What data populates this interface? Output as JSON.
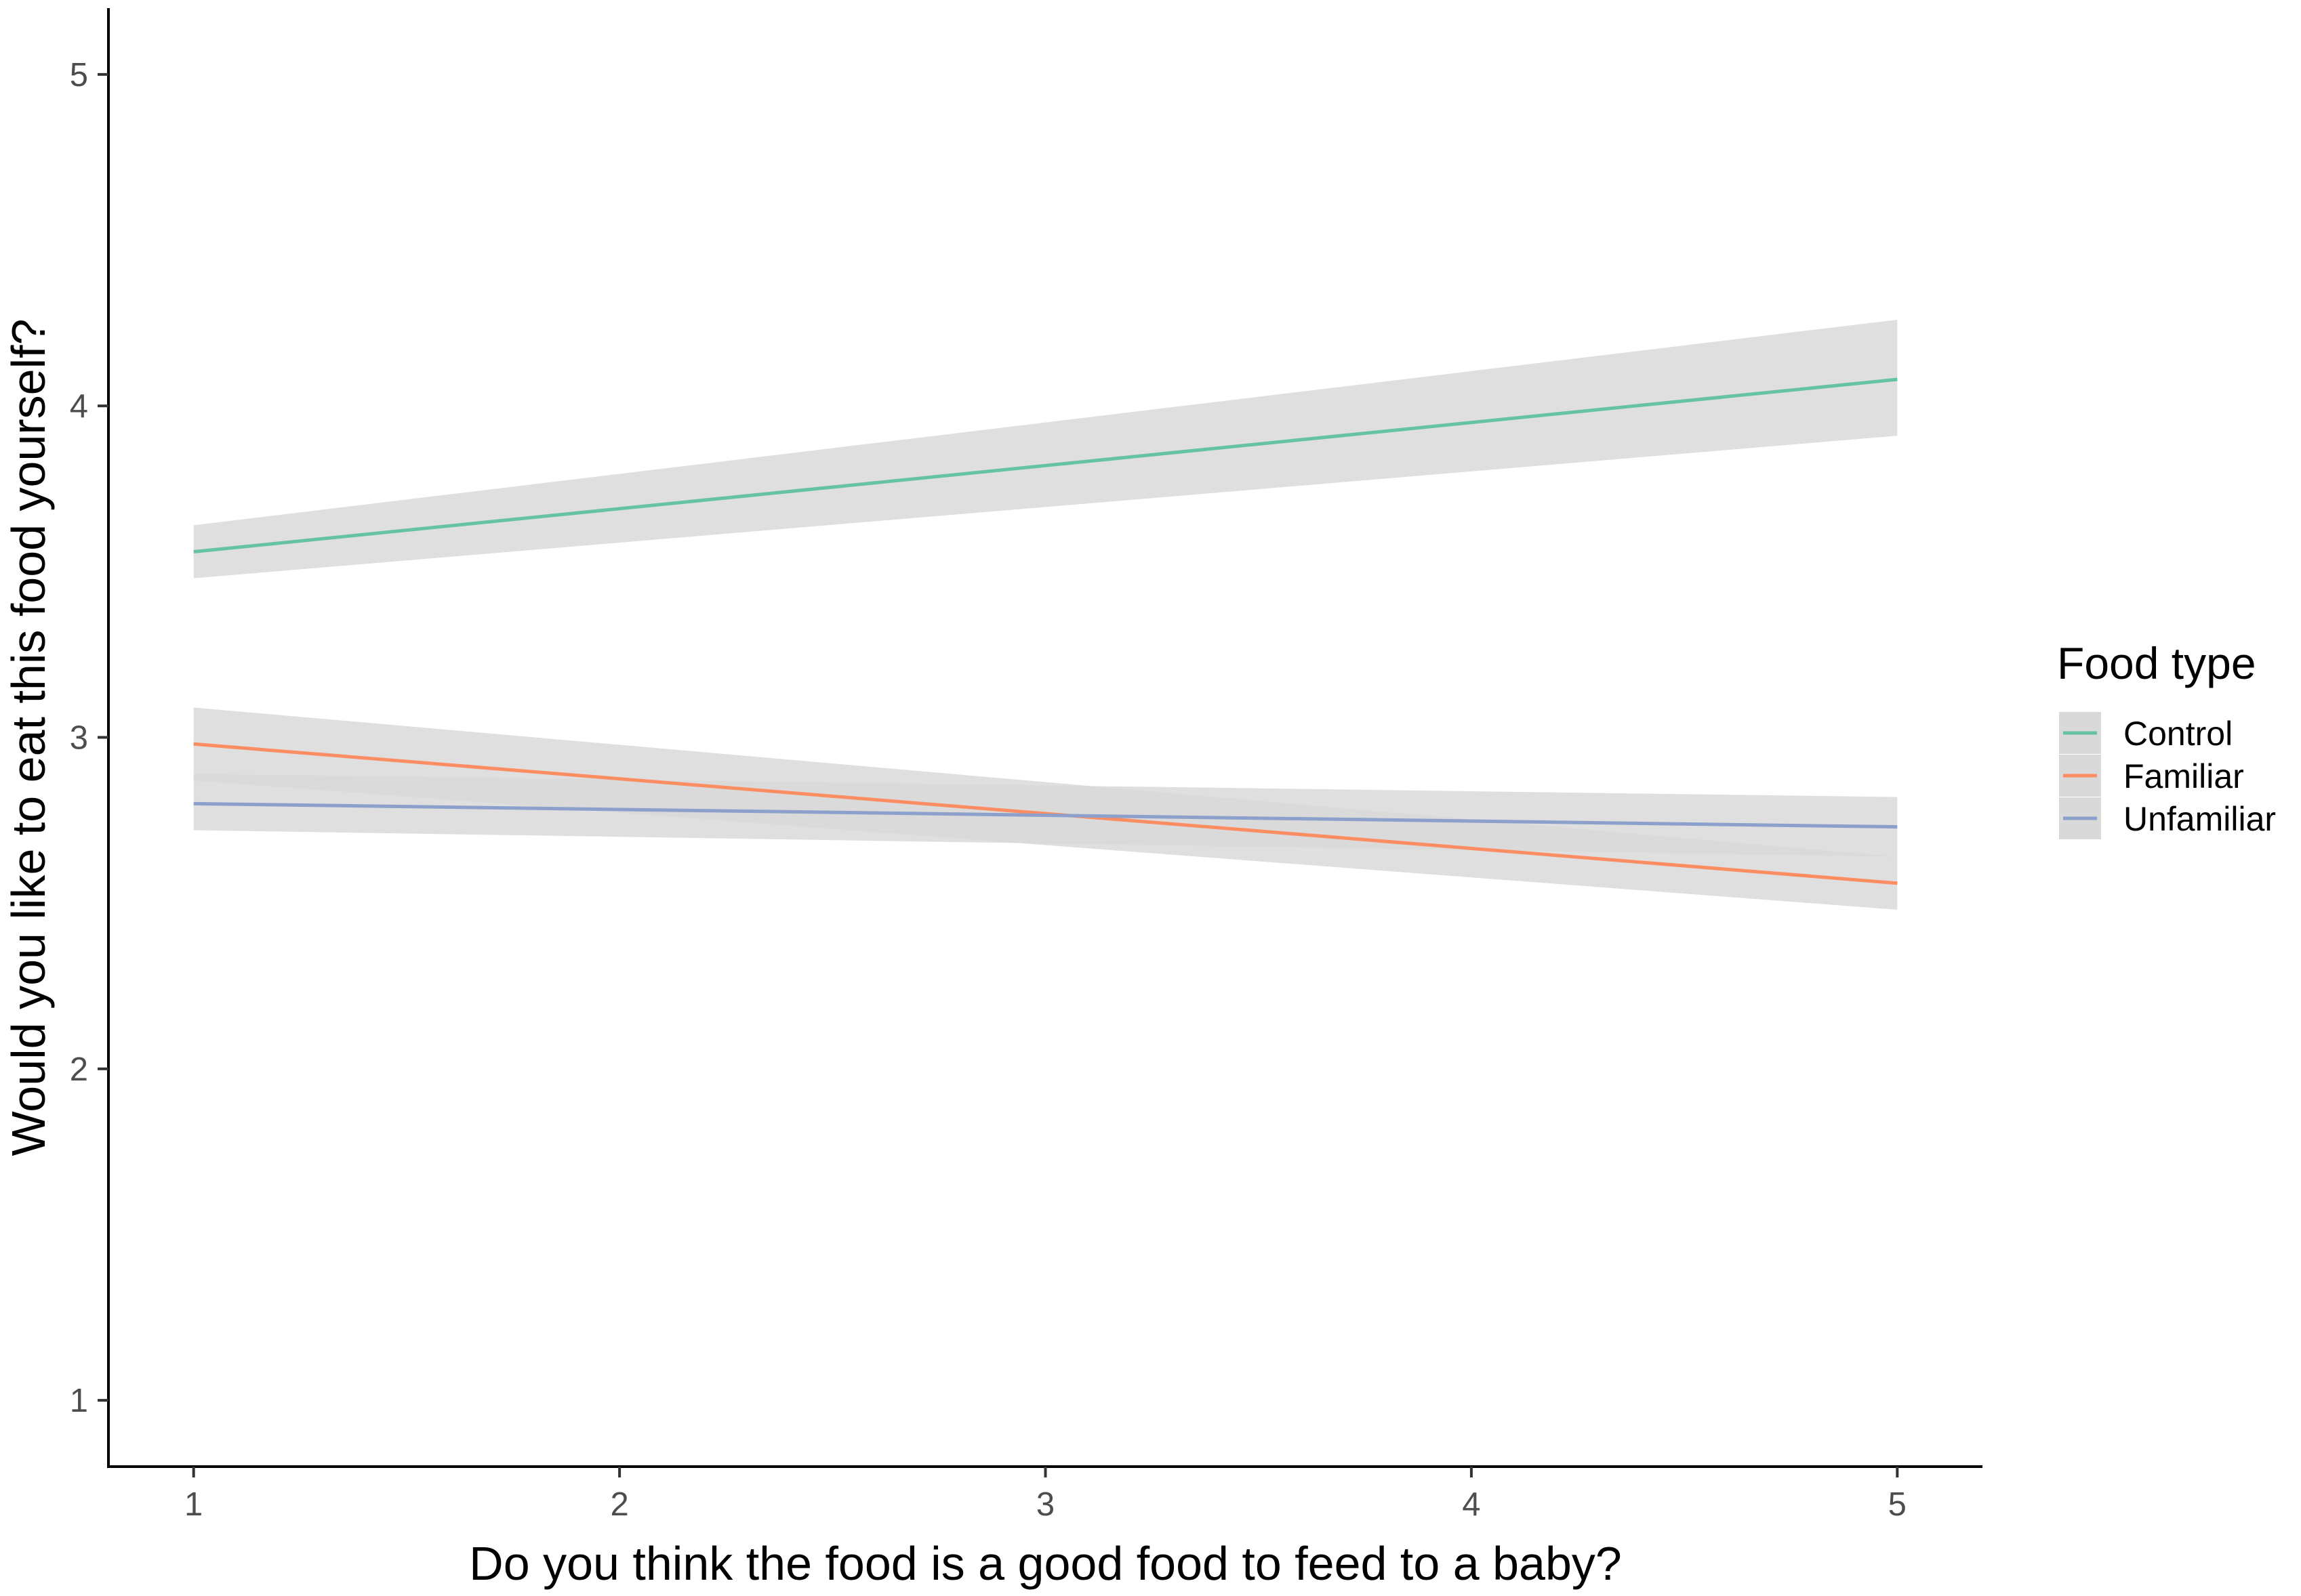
{
  "chart_data": {
    "type": "line",
    "title": "",
    "xlabel": "Do you think the food is a good food to feed to a baby?",
    "ylabel": "Would you like to eat this food yourself?",
    "xlim": [
      0.8,
      5.2
    ],
    "ylim": [
      0.8,
      5.2
    ],
    "x_ticks": [
      1,
      2,
      3,
      4,
      5
    ],
    "y_ticks": [
      1,
      2,
      3,
      4,
      5
    ],
    "x_tick_labels": [
      "1",
      "2",
      "3",
      "4",
      "5"
    ],
    "y_tick_labels": [
      "1",
      "2",
      "3",
      "4",
      "5"
    ],
    "grid": false,
    "legend": {
      "title": "Food type",
      "position": "right"
    },
    "series": [
      {
        "name": "Control",
        "color": "#66c2a5",
        "x": [
          1,
          5
        ],
        "y": [
          3.56,
          4.08
        ],
        "ci_lower": [
          3.48,
          3.91
        ],
        "ci_upper": [
          3.64,
          4.26
        ]
      },
      {
        "name": "Familiar",
        "color": "#fc8d62",
        "x": [
          1,
          5
        ],
        "y": [
          2.98,
          2.56
        ],
        "ci_lower": [
          2.87,
          2.48
        ],
        "ci_upper": [
          3.09,
          2.64
        ]
      },
      {
        "name": "Unfamiliar",
        "color": "#8da0cb",
        "x": [
          1,
          5
        ],
        "y": [
          2.8,
          2.73
        ],
        "ci_lower": [
          2.72,
          2.64
        ],
        "ci_upper": [
          2.89,
          2.82
        ]
      }
    ],
    "ci_band_color": "#d9d9d9"
  }
}
